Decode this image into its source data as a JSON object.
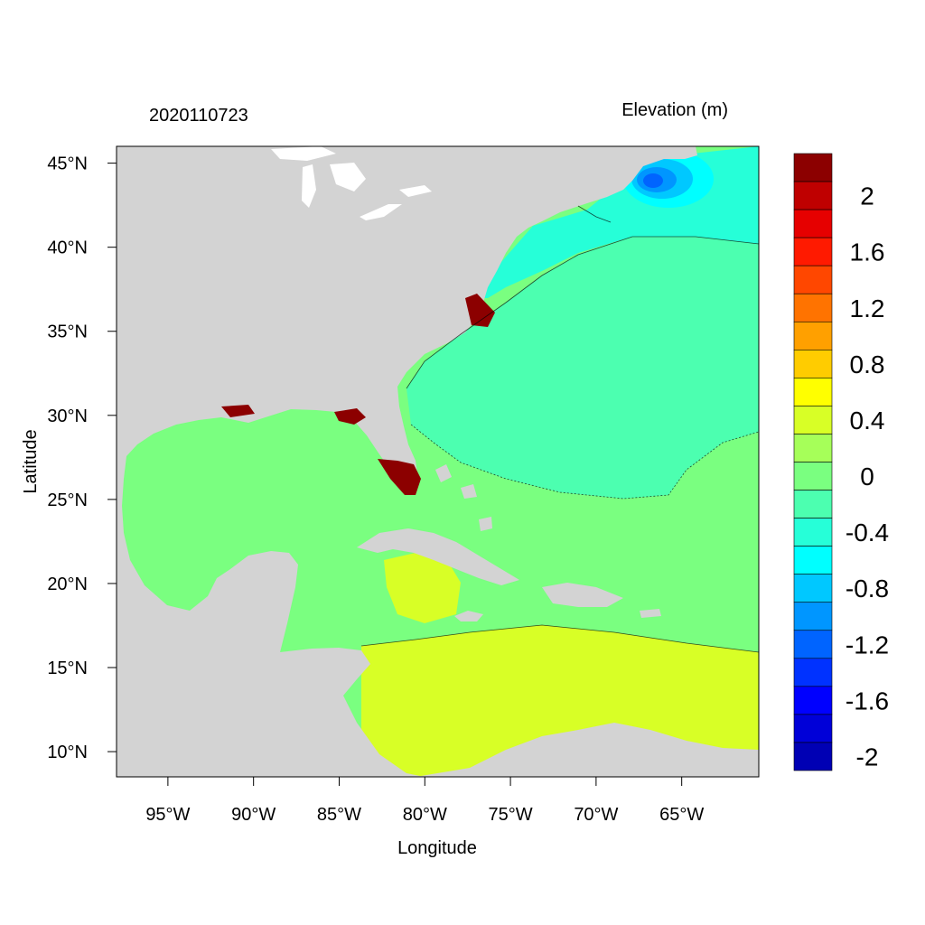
{
  "header": {
    "timestamp": "2020110723",
    "variable_label": "Elevation (m)"
  },
  "axes": {
    "xlabel": "Longitude",
    "ylabel": "Latitude",
    "x_range_deg": [
      -98,
      -60.5
    ],
    "y_range_deg": [
      8.5,
      46
    ],
    "x_ticks": [
      {
        "value": -95,
        "label": "95°W"
      },
      {
        "value": -90,
        "label": "90°W"
      },
      {
        "value": -85,
        "label": "85°W"
      },
      {
        "value": -80,
        "label": "80°W"
      },
      {
        "value": -75,
        "label": "75°W"
      },
      {
        "value": -70,
        "label": "70°W"
      },
      {
        "value": -65,
        "label": "65°W"
      }
    ],
    "y_ticks": [
      {
        "value": 45,
        "label": "45°N"
      },
      {
        "value": 40,
        "label": "40°N"
      },
      {
        "value": 35,
        "label": "35°N"
      },
      {
        "value": 30,
        "label": "30°N"
      },
      {
        "value": 25,
        "label": "25°N"
      },
      {
        "value": 20,
        "label": "20°N"
      },
      {
        "value": 15,
        "label": "15°N"
      },
      {
        "value": 10,
        "label": "10°N"
      }
    ]
  },
  "colorbar": {
    "levels_top_to_bottom": [
      {
        "color": "#8c0000"
      },
      {
        "color": "#bf0000"
      },
      {
        "color": "#e60000"
      },
      {
        "color": "#ff1a00"
      },
      {
        "color": "#ff4700"
      },
      {
        "color": "#ff7300"
      },
      {
        "color": "#ffa000"
      },
      {
        "color": "#ffcc00"
      },
      {
        "color": "#ffff00"
      },
      {
        "color": "#d8ff26"
      },
      {
        "color": "#a6ff59"
      },
      {
        "color": "#7aff80"
      },
      {
        "color": "#4cffb0"
      },
      {
        "color": "#26ffd8"
      },
      {
        "color": "#00ffff"
      },
      {
        "color": "#00c8ff"
      },
      {
        "color": "#0096ff"
      },
      {
        "color": "#0064ff"
      },
      {
        "color": "#0032ff"
      },
      {
        "color": "#0000ff"
      },
      {
        "color": "#0000d8"
      },
      {
        "color": "#0000b4"
      }
    ],
    "labels": [
      {
        "value": 2,
        "text": "2"
      },
      {
        "value": 1.6,
        "text": "1.6"
      },
      {
        "value": 1.2,
        "text": "1.2"
      },
      {
        "value": 0.8,
        "text": "0.8"
      },
      {
        "value": 0.4,
        "text": "0.4"
      },
      {
        "value": 0,
        "text": "0"
      },
      {
        "value": -0.4,
        "text": "-0.4"
      },
      {
        "value": -0.8,
        "text": "-0.8"
      },
      {
        "value": -1.2,
        "text": "-1.2"
      },
      {
        "value": -1.6,
        "text": "-1.6"
      },
      {
        "value": -2,
        "text": "-2"
      }
    ]
  },
  "colors": {
    "land": "#d3d3d3",
    "lakes": "#ffffff",
    "open_atlantic": "#4cffb0",
    "neg_anomaly": "#26ffd8",
    "gulf": "#7aff80",
    "caribbean": "#d8ff26",
    "surge": "#8c0000"
  }
}
